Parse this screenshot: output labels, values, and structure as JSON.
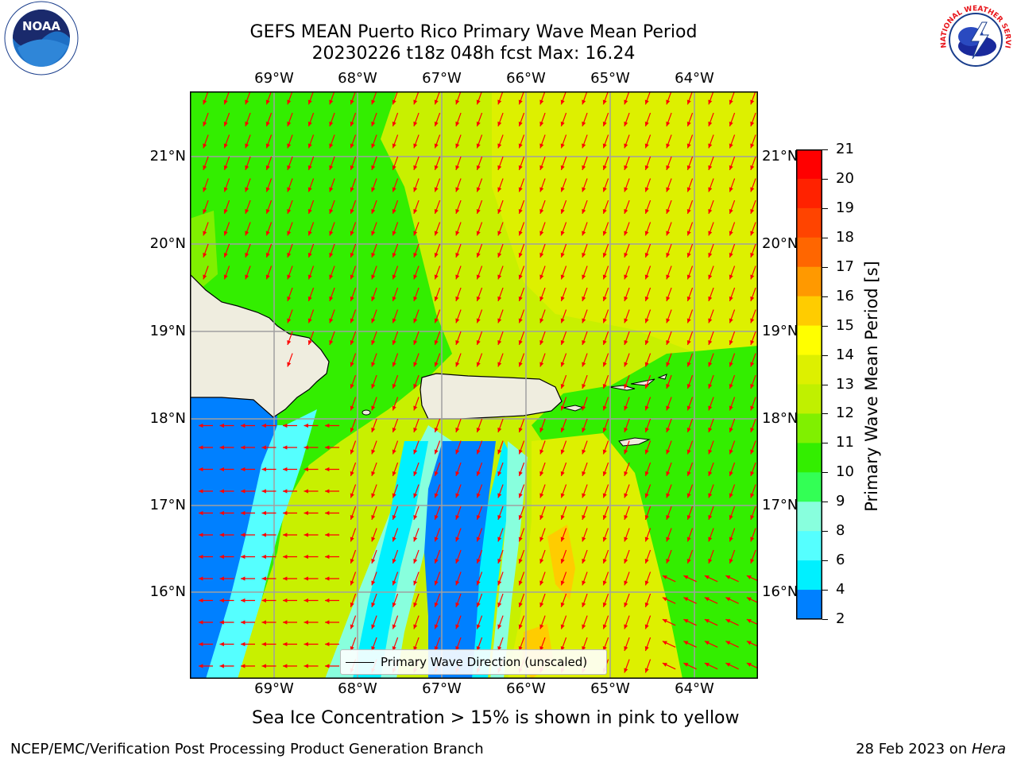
{
  "title": {
    "line1": "GEFS MEAN Puerto Rico Primary Wave Mean Period",
    "line2": "20230226 t18z 048h fcst   Max: 16.24"
  },
  "map": {
    "lon_ticks": [
      "69°W",
      "68°W",
      "67°W",
      "66°W",
      "65°W",
      "64°W"
    ],
    "lat_ticks": [
      "21°N",
      "20°N",
      "19°N",
      "18°N",
      "17°N",
      "16°N"
    ],
    "legend_label": "Primary Wave Direction (unscaled)",
    "arrow_color": "#ff0000",
    "land_color": "#efeddf"
  },
  "colorbar": {
    "label": "Primary Wave Mean Period [s]",
    "ticks": [
      "21",
      "20",
      "19",
      "18",
      "17",
      "16",
      "15",
      "14",
      "13",
      "12",
      "11",
      "10",
      "9",
      "8",
      "6",
      "4",
      "2"
    ],
    "colors": [
      "#ff0000",
      "#ff2200",
      "#ff4400",
      "#ff6600",
      "#ff9900",
      "#ffcc00",
      "#ffff00",
      "#ddf000",
      "#c0f000",
      "#80f000",
      "#33ee00",
      "#33ff55",
      "#88ffdd",
      "#55ffff",
      "#00f0ff",
      "#0080ff",
      "#0000ff"
    ]
  },
  "subnote": "Sea Ice Concentration > 15% is shown in pink to yellow",
  "footer": {
    "left": "NCEP/EMC/Verification Post Processing Product Generation Branch",
    "right_date": "28 Feb 2023 on ",
    "right_host": "Hera"
  },
  "logos": {
    "noaa_text": "NOAA",
    "nws_text": "NATIONAL WEATHER SERVICE"
  }
}
